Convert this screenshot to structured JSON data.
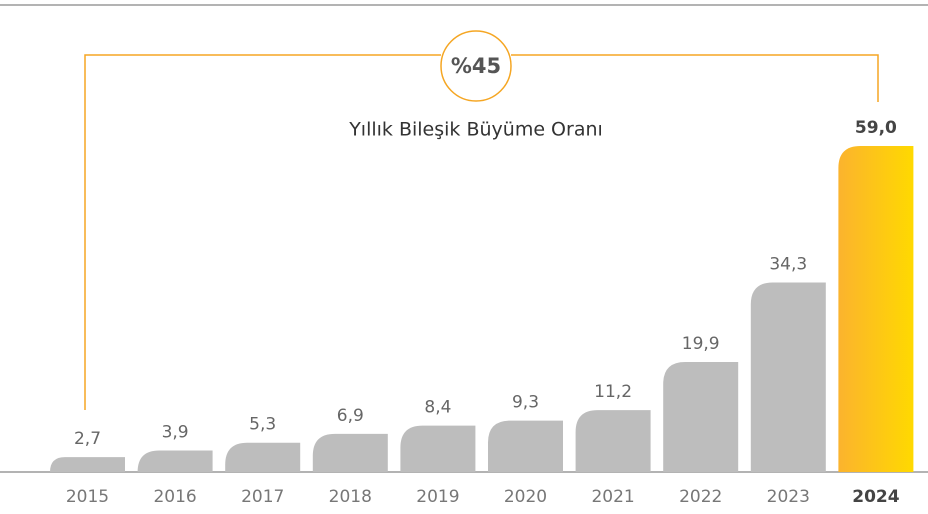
{
  "chart_data": {
    "type": "bar",
    "title": "Yıllık Bileşik Büyüme Oranı",
    "annotation": "%45",
    "categories": [
      "2015",
      "2016",
      "2017",
      "2018",
      "2019",
      "2020",
      "2021",
      "2022",
      "2023",
      "2024"
    ],
    "values": [
      2.7,
      3.9,
      5.3,
      6.9,
      8.4,
      9.3,
      11.2,
      19.9,
      34.3,
      59.0
    ],
    "value_labels": [
      "2,7",
      "3,9",
      "5,3",
      "6,9",
      "8,4",
      "9,3",
      "11,2",
      "19,9",
      "34,3",
      "59,0"
    ],
    "color": "#bdbdbd",
    "highlight_color": [
      "#fbb32e",
      "#ffd900"
    ]
  }
}
